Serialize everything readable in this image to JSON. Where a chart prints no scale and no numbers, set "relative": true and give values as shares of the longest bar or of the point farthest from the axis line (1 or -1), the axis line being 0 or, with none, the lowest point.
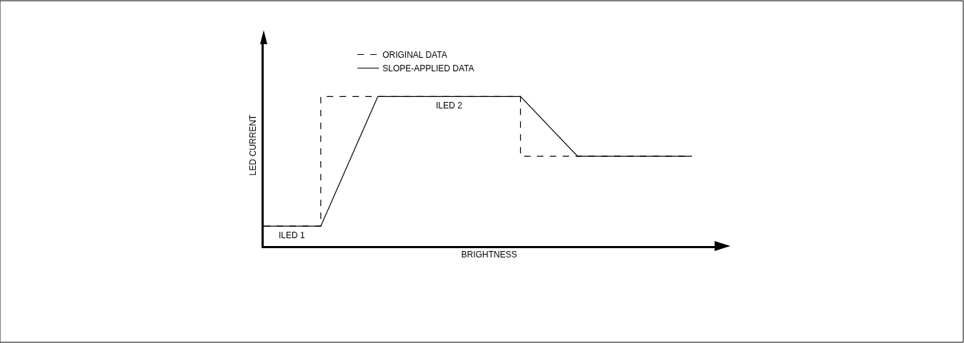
{
  "chart_data": {
    "type": "line",
    "relative": true,
    "xlabel": "BRIGHTNESS",
    "ylabel": "LED CURRENT",
    "categories": [
      null,
      null,
      null,
      null,
      null,
      null,
      null,
      null,
      null,
      null,
      null,
      null,
      null,
      null,
      null,
      null
    ],
    "tick_labels": false,
    "legend": "top",
    "marker": "none",
    "series": [
      {
        "name": "ORIGINAL DATA",
        "type": "step",
        "color": "#000000",
        "line_style": "dashed",
        "values": [
          0.133,
          null,
          1,
          null,
          null,
          null,
          null,
          null,
          null,
          0.6,
          null,
          null,
          null,
          null,
          null,
          0.6
        ]
      },
      {
        "name": "SLOPE-APPLIED DATA",
        "color": "#000000",
        "line_style": "solid",
        "values": [
          0.133,
          null,
          0.133,
          null,
          1,
          null,
          null,
          null,
          null,
          1,
          null,
          0.6,
          null,
          null,
          null,
          0.6
        ]
      }
    ],
    "annotations": [
      {
        "text": "ILED 1",
        "y": 0.133
      },
      {
        "text": "ILED 2",
        "y": 1
      }
    ]
  }
}
